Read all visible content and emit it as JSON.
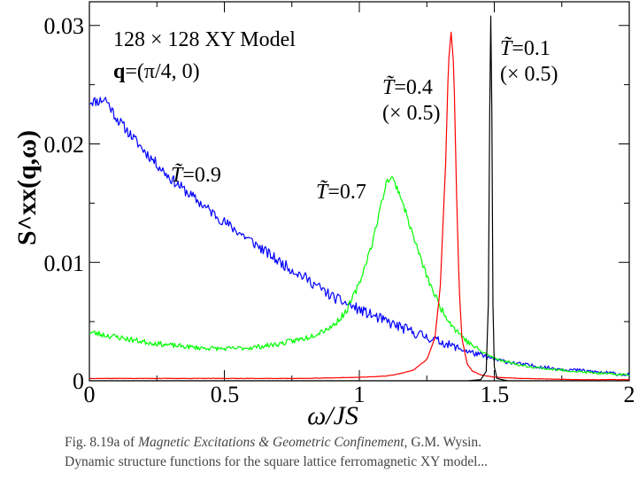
{
  "chart_data": {
    "type": "line",
    "title": "",
    "xlabel": "ω/JS",
    "ylabel": "S^xx(q,ω)",
    "xlim": [
      0,
      2
    ],
    "ylim": [
      0,
      0.032
    ],
    "x_ticks": [
      0,
      0.5,
      1,
      1.5,
      2
    ],
    "x_tick_labels": [
      "0",
      "0.5",
      "1",
      "1.5",
      "2"
    ],
    "y_ticks": [
      0,
      0.01,
      0.02,
      0.03
    ],
    "y_tick_labels": [
      "0",
      "0.01",
      "0.02",
      "0.03"
    ],
    "grid": false,
    "legend": "none (curves labelled inline)",
    "annotations": {
      "model": "128 × 128 XY Model",
      "q_prefix": "q",
      "q_value": "=(π/4, 0)"
    },
    "series": [
      {
        "name": "T̃=0.9",
        "label_T": "T̃",
        "label_val": "=0.9",
        "scale_note": "",
        "color": "#0000ff",
        "noise": 0.00045,
        "seed": 11,
        "x": [
          0,
          0.03,
          0.06,
          0.1,
          0.2,
          0.3,
          0.4,
          0.5,
          0.6,
          0.7,
          0.8,
          0.9,
          1.0,
          1.1,
          1.2,
          1.3,
          1.4,
          1.5,
          1.6,
          1.7,
          1.8,
          1.9,
          2.0
        ],
        "y": [
          0.0236,
          0.0236,
          0.0238,
          0.0222,
          0.0195,
          0.0171,
          0.0152,
          0.0134,
          0.0118,
          0.0101,
          0.0087,
          0.0071,
          0.006,
          0.005,
          0.0041,
          0.0033,
          0.0025,
          0.0018,
          0.0014,
          0.0011,
          0.0009,
          0.0007,
          0.0005
        ]
      },
      {
        "name": "T̃=0.7",
        "label_T": "T̃",
        "label_val": "=0.7",
        "scale_note": "",
        "color": "#00ff00",
        "noise": 0.00028,
        "seed": 23,
        "x": [
          0,
          0.05,
          0.1,
          0.2,
          0.3,
          0.4,
          0.5,
          0.6,
          0.7,
          0.8,
          0.9,
          0.95,
          1.0,
          1.05,
          1.08,
          1.1,
          1.12,
          1.15,
          1.2,
          1.25,
          1.3,
          1.35,
          1.4,
          1.45,
          1.5,
          1.6,
          1.7,
          1.8,
          1.9,
          2.0
        ],
        "y": [
          0.0041,
          0.0039,
          0.0037,
          0.0033,
          0.003,
          0.0028,
          0.0027,
          0.0028,
          0.0031,
          0.0036,
          0.0046,
          0.0058,
          0.0082,
          0.0118,
          0.0148,
          0.0168,
          0.0172,
          0.0158,
          0.0122,
          0.0088,
          0.0062,
          0.0045,
          0.0033,
          0.0025,
          0.0019,
          0.0013,
          0.001,
          0.0008,
          0.0006,
          0.0005
        ]
      },
      {
        "name": "T̃=0.4",
        "label_T": "T̃",
        "label_val": "=0.4",
        "scale_note": "(× 0.5)",
        "color": "#ff0000",
        "noise": 5e-05,
        "seed": 37,
        "x": [
          0,
          0.2,
          0.4,
          0.6,
          0.8,
          1.0,
          1.1,
          1.15,
          1.2,
          1.25,
          1.28,
          1.3,
          1.32,
          1.33,
          1.34,
          1.35,
          1.36,
          1.37,
          1.38,
          1.4,
          1.42,
          1.45,
          1.5,
          1.6,
          1.8,
          2.0
        ],
        "y": [
          0.0002,
          0.0002,
          0.0002,
          0.0002,
          0.0002,
          0.0003,
          0.0004,
          0.0006,
          0.0009,
          0.0018,
          0.0036,
          0.008,
          0.0185,
          0.0268,
          0.0294,
          0.0265,
          0.016,
          0.0078,
          0.0036,
          0.0014,
          0.0008,
          0.0005,
          0.0003,
          0.0002,
          0.0001,
          0.0001
        ]
      },
      {
        "name": "T̃=0.1",
        "label_T": "T̃",
        "label_val": "=0.1",
        "scale_note": "(× 0.5)",
        "color": "#000000",
        "noise": 0,
        "seed": 41,
        "x": [
          0,
          1.4,
          1.45,
          1.47,
          1.478,
          1.483,
          1.487,
          1.491,
          1.495,
          1.5,
          1.51,
          1.55,
          1.7,
          2.0
        ],
        "y": [
          0,
          0,
          0.0001,
          0.0008,
          0.0065,
          0.0225,
          0.0308,
          0.0225,
          0.0065,
          0.0012,
          0.0002,
          0,
          0,
          0
        ]
      }
    ]
  },
  "caption": {
    "line1_prefix": "Fig. 8.19a of ",
    "line1_book": "Magnetic Excitations & Geometric Confinement,",
    "line1_author": " G.M. Wysin.",
    "line2": "Dynamic structure functions for the square lattice ferromagnetic XY model..."
  }
}
